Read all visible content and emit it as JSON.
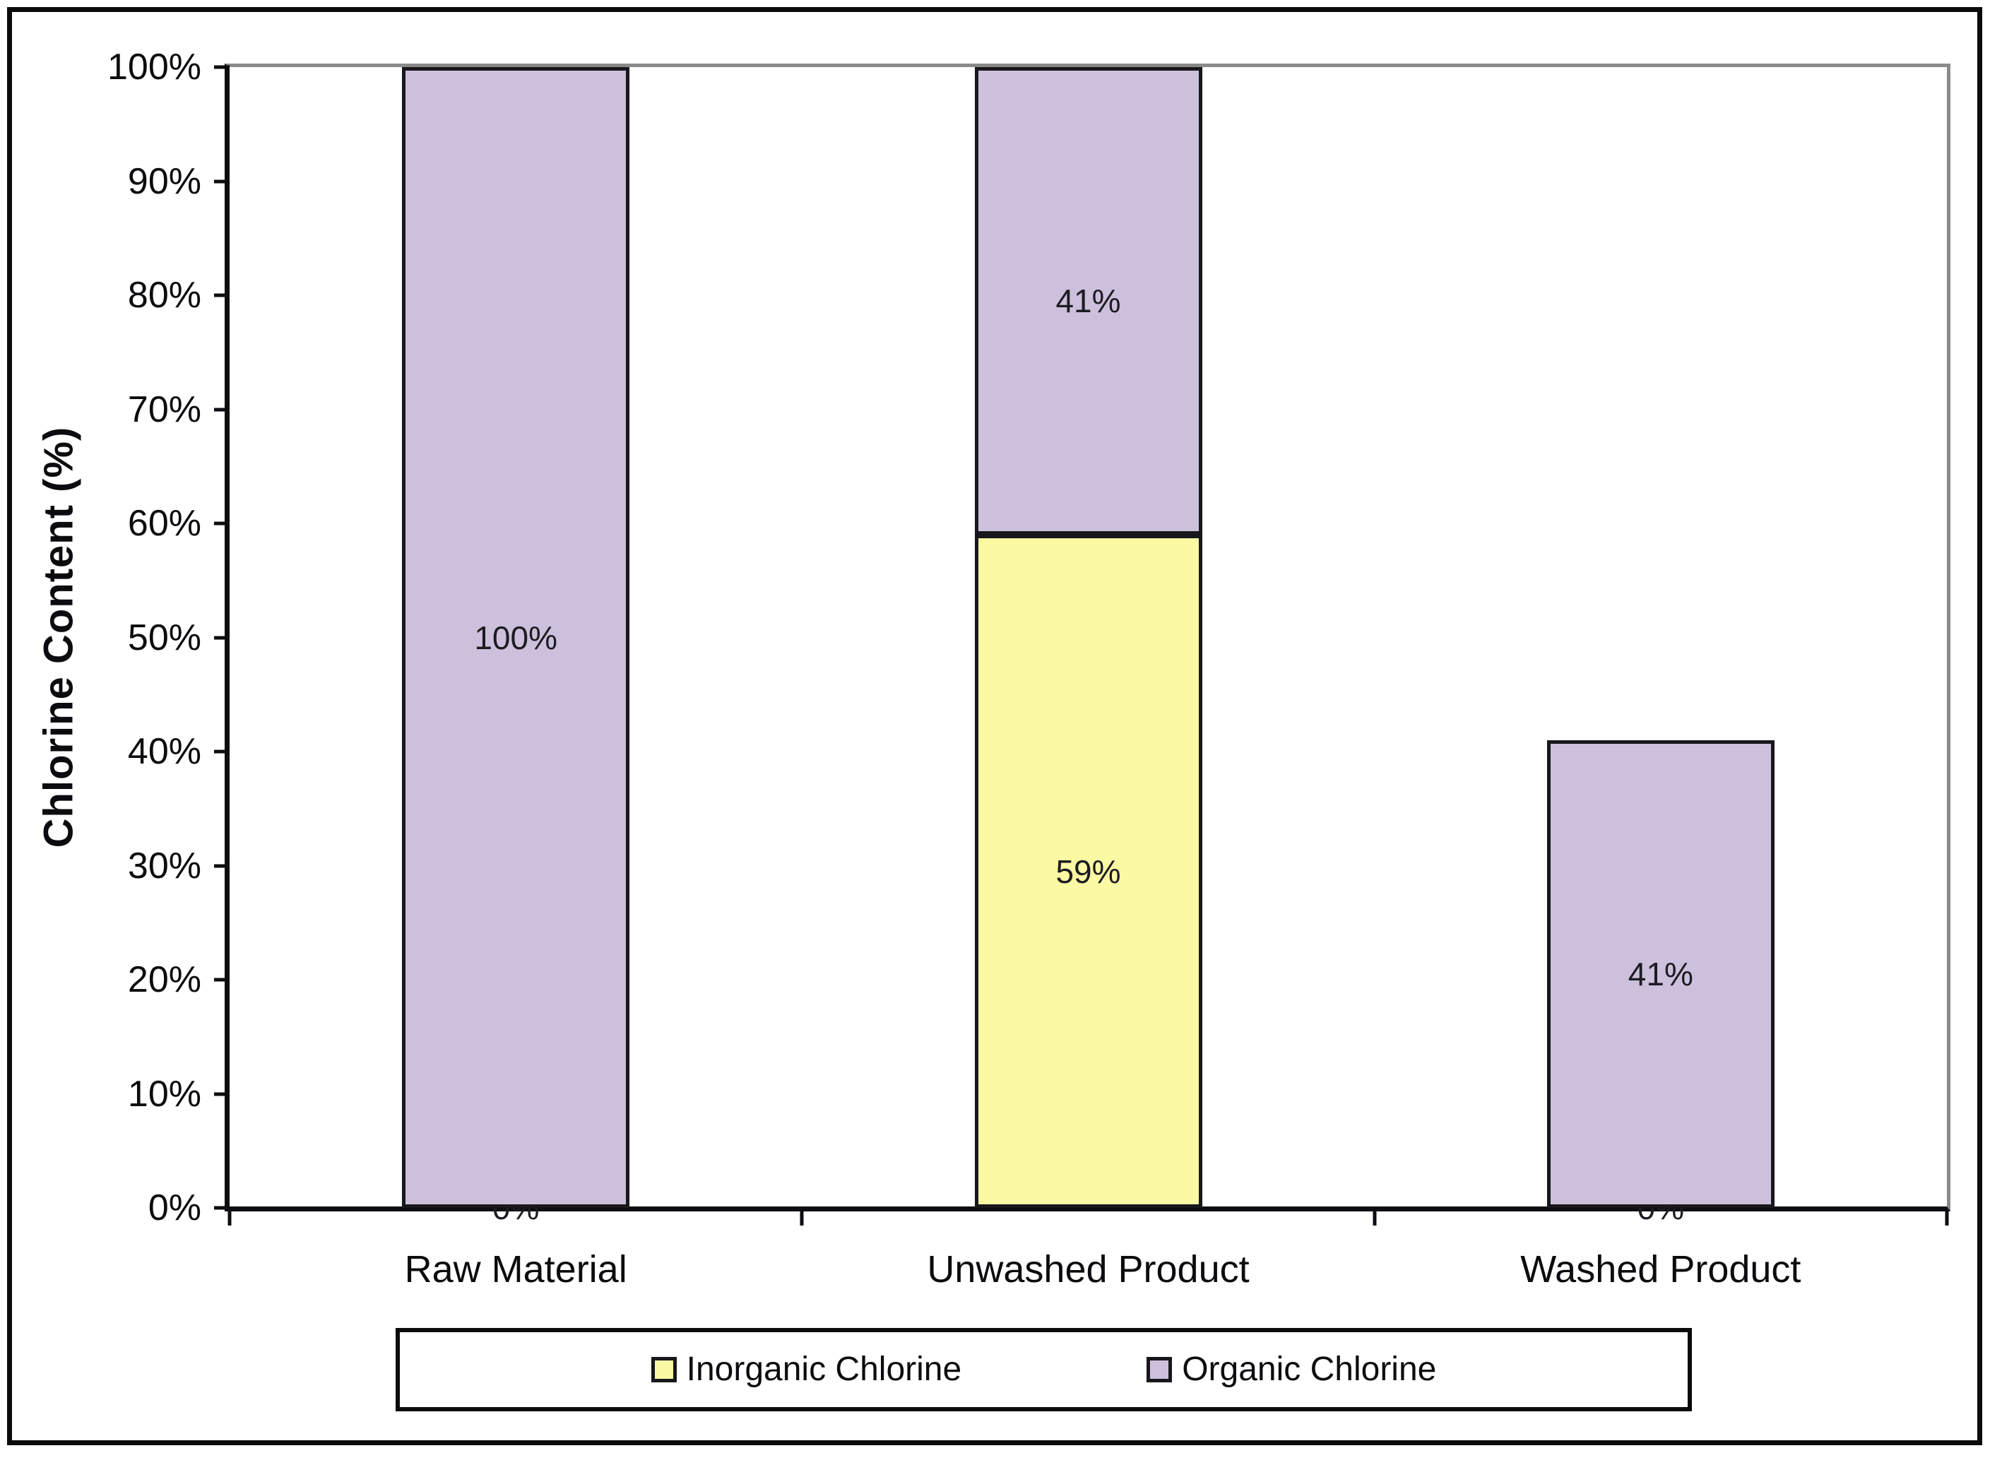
{
  "chart_data": {
    "type": "bar",
    "stacked": true,
    "categories": [
      "Raw Material",
      "Unwashed Product",
      "Washed Product"
    ],
    "series": [
      {
        "name": "Inorganic Chlorine",
        "color": "#FCF9A4",
        "values": [
          0,
          59,
          0
        ],
        "labels": [
          "0%",
          "59%",
          "0%"
        ]
      },
      {
        "name": "Organic Chlorine",
        "color": "#CDC0DC",
        "values": [
          100,
          41,
          41
        ],
        "labels": [
          "100%",
          "41%",
          "41%"
        ]
      }
    ],
    "title": "",
    "xlabel": "",
    "ylabel": "Chlorine Content (%)",
    "ylim": [
      0,
      100
    ],
    "yticks": [
      "0%",
      "10%",
      "20%",
      "30%",
      "40%",
      "50%",
      "60%",
      "70%",
      "80%",
      "90%",
      "100%"
    ],
    "grid": "plot-top-and-right-border-only",
    "legend_position": "bottom",
    "data_labels": "center"
  },
  "colors": {
    "axis": "#0d0d12",
    "plot_border_gray": "#8a8a8a",
    "bar_border": "#17171c",
    "data_label_text": "#1c1c22",
    "tick_text": "#0c0c10",
    "figure_border": "#0b0b0b",
    "background": "#ffffff"
  }
}
